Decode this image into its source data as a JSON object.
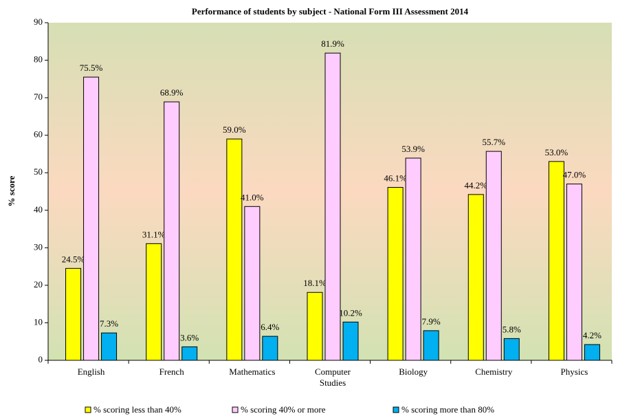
{
  "chart_data": {
    "type": "bar",
    "title": "Performance of students by subject - National Form III Assessment 2014",
    "y_label": "% score",
    "categories": [
      "English",
      "French",
      "Mathematics",
      "Computer Studies",
      "Biology",
      "Chemistry",
      "Physics"
    ],
    "series": [
      {
        "name": "% scoring less than 40%",
        "color": "#ffff00",
        "values": [
          24.5,
          31.1,
          59.0,
          18.1,
          46.1,
          44.2,
          53.0
        ],
        "value_labels": [
          "24.5%",
          "31.1%",
          "59.0%",
          "18.1%",
          "46.1%",
          "44.2%",
          "53.0%"
        ]
      },
      {
        "name": "% scoring 40% or more",
        "color": "#ffccff",
        "values": [
          75.5,
          68.9,
          41.0,
          81.9,
          53.9,
          55.7,
          47.0
        ],
        "value_labels": [
          "75.5%",
          "68.9%",
          "41.0%",
          "81.9%",
          "53.9%",
          "55.7%",
          "47.0%"
        ]
      },
      {
        "name": "% scoring more than 80%",
        "color": "#00b0f0",
        "values": [
          7.3,
          3.6,
          6.4,
          10.2,
          7.9,
          5.8,
          4.2
        ],
        "value_labels": [
          "7.3%",
          "3.6%",
          "6.4%",
          "10.2%",
          "7.9%",
          "5.8%",
          "4.2%"
        ]
      }
    ],
    "ylim": [
      0,
      90
    ],
    "yticks": [
      0,
      10,
      20,
      30,
      40,
      50,
      60,
      70,
      80,
      90
    ],
    "legend": "bottom"
  }
}
